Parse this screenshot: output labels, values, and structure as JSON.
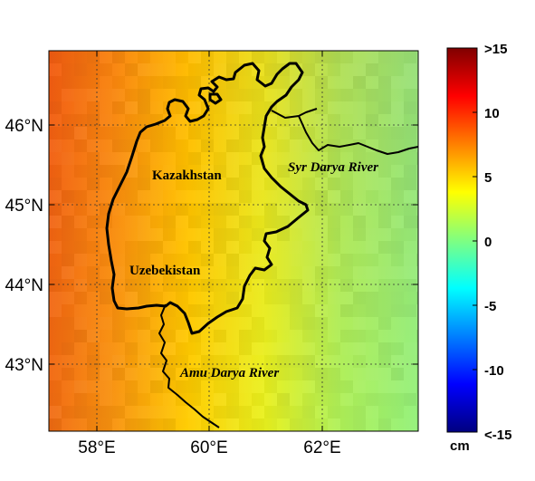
{
  "map": {
    "x_ticks": [
      "58°E",
      "60°E",
      "62°E"
    ],
    "y_ticks": [
      "46°N",
      "45°N",
      "44°N",
      "43°N"
    ],
    "labels": {
      "kazakhstan": "Kazakhstan",
      "uzbekistan": "Uzebekistan",
      "syr_darya": "Syr Darya River",
      "amu_darya": "Amu Darya River"
    }
  },
  "colorbar": {
    "unit": "cm",
    "ticks": [
      ">15",
      "10",
      "5",
      "0",
      "-5",
      "-10",
      "<-15"
    ],
    "colormap": "jet",
    "min": -15,
    "max": 15
  }
}
